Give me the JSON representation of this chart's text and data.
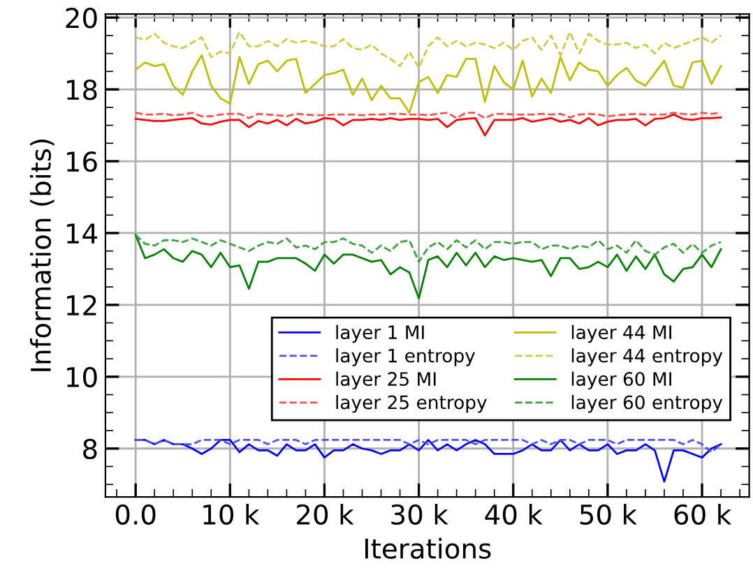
{
  "chart_data": {
    "type": "line",
    "xlabel": "Iterations",
    "ylabel": "Information (bits)",
    "x": [
      0,
      1000,
      2000,
      3000,
      4000,
      5000,
      6000,
      7000,
      8000,
      9000,
      10000,
      11000,
      12000,
      13000,
      14000,
      15000,
      16000,
      17000,
      18000,
      19000,
      20000,
      21000,
      22000,
      23000,
      24000,
      25000,
      26000,
      27000,
      28000,
      29000,
      30000,
      31000,
      32000,
      33000,
      34000,
      35000,
      36000,
      37000,
      38000,
      39000,
      40000,
      41000,
      42000,
      43000,
      44000,
      45000,
      46000,
      47000,
      48000,
      49000,
      50000,
      51000,
      52000,
      53000,
      54000,
      55000,
      56000,
      57000,
      58000,
      59000,
      60000,
      61000,
      62000
    ],
    "series": [
      {
        "name": "layer 1 MI",
        "color": "#0000ff",
        "line_style": "solid",
        "values": [
          8.24,
          8.24,
          8.12,
          8.24,
          8.12,
          8.12,
          8.0,
          7.85,
          8.0,
          8.24,
          8.24,
          7.9,
          8.12,
          7.95,
          7.95,
          7.8,
          8.12,
          7.95,
          7.95,
          8.12,
          7.75,
          7.95,
          7.95,
          8.12,
          8.0,
          7.95,
          7.85,
          7.95,
          7.95,
          8.12,
          7.95,
          8.24,
          7.95,
          8.12,
          7.95,
          8.12,
          8.24,
          8.12,
          7.85,
          7.85,
          7.85,
          7.95,
          8.12,
          7.95,
          7.95,
          8.24,
          7.95,
          8.12,
          7.95,
          7.95,
          8.12,
          7.85,
          7.95,
          7.95,
          8.12,
          7.95,
          7.08,
          7.95,
          7.95,
          7.85,
          7.75,
          8.0,
          8.12
        ]
      },
      {
        "name": "layer 1 entropy",
        "color": "#5050ff",
        "line_style": "dashed",
        "values": [
          8.24,
          8.24,
          8.12,
          8.24,
          8.12,
          8.12,
          8.12,
          8.24,
          8.24,
          8.24,
          8.12,
          8.24,
          8.24,
          8.24,
          8.12,
          8.24,
          8.24,
          8.24,
          8.12,
          8.24,
          8.24,
          8.24,
          8.24,
          8.24,
          8.24,
          8.24,
          8.24,
          8.24,
          8.24,
          8.12,
          8.24,
          8.12,
          8.24,
          8.24,
          8.24,
          8.24,
          8.12,
          8.24,
          8.24,
          8.24,
          8.24,
          8.24,
          8.12,
          8.24,
          8.12,
          8.24,
          8.24,
          8.12,
          8.24,
          8.24,
          8.24,
          8.12,
          8.24,
          8.24,
          8.24,
          8.24,
          8.24,
          8.24,
          8.12,
          8.24,
          8.12,
          7.9,
          8.12
        ]
      },
      {
        "name": "layer 25 MI",
        "color": "#ff0000",
        "line_style": "solid",
        "values": [
          17.18,
          17.15,
          17.12,
          17.12,
          17.15,
          17.18,
          17.2,
          17.05,
          17.02,
          17.1,
          17.15,
          17.15,
          16.95,
          17.12,
          17.05,
          17.15,
          17.0,
          17.18,
          17.05,
          17.1,
          17.2,
          17.18,
          17.0,
          17.15,
          17.15,
          17.18,
          17.15,
          17.2,
          17.15,
          17.18,
          17.18,
          17.15,
          17.18,
          16.95,
          17.15,
          17.18,
          17.2,
          16.72,
          17.15,
          17.15,
          17.15,
          17.2,
          17.1,
          17.15,
          17.2,
          17.1,
          17.15,
          17.05,
          17.2,
          17.0,
          17.1,
          17.15,
          17.15,
          17.18,
          17.0,
          17.18,
          17.2,
          17.3,
          17.18,
          17.15,
          17.2,
          17.2,
          17.22
        ]
      },
      {
        "name": "layer 25 entropy",
        "color": "#ff5050",
        "line_style": "dashed",
        "values": [
          17.35,
          17.3,
          17.3,
          17.32,
          17.28,
          17.3,
          17.35,
          17.25,
          17.25,
          17.3,
          17.32,
          17.32,
          17.2,
          17.32,
          17.3,
          17.28,
          17.25,
          17.32,
          17.3,
          17.28,
          17.28,
          17.3,
          17.3,
          17.3,
          17.28,
          17.3,
          17.3,
          17.32,
          17.32,
          17.3,
          17.3,
          17.28,
          17.32,
          17.35,
          17.2,
          17.35,
          17.35,
          17.2,
          17.32,
          17.32,
          17.3,
          17.3,
          17.3,
          17.32,
          17.3,
          17.32,
          17.22,
          17.3,
          17.32,
          17.3,
          17.25,
          17.28,
          17.3,
          17.32,
          17.3,
          17.3,
          17.3,
          17.35,
          17.32,
          17.3,
          17.35,
          17.32,
          17.35
        ]
      },
      {
        "name": "layer 44 MI",
        "color": "#bfbf00",
        "line_style": "solid",
        "values": [
          18.55,
          18.75,
          18.65,
          18.7,
          18.1,
          17.85,
          18.5,
          18.95,
          18.1,
          17.75,
          17.6,
          18.9,
          18.15,
          18.7,
          18.8,
          18.5,
          18.8,
          18.85,
          17.9,
          18.15,
          18.4,
          18.45,
          18.55,
          17.85,
          18.3,
          17.7,
          18.1,
          17.75,
          17.75,
          17.35,
          18.2,
          18.35,
          17.9,
          18.4,
          18.35,
          18.85,
          18.85,
          17.65,
          18.65,
          18.2,
          18.0,
          18.8,
          17.8,
          18.3,
          17.9,
          18.9,
          18.25,
          18.75,
          18.55,
          18.5,
          18.1,
          18.4,
          18.6,
          18.25,
          18.1,
          18.45,
          18.8,
          18.1,
          18.05,
          18.75,
          18.8,
          18.15,
          18.65
        ]
      },
      {
        "name": "layer 44 entropy",
        "color": "#cccc40",
        "line_style": "dashed",
        "values": [
          19.45,
          19.38,
          19.55,
          19.3,
          19.2,
          19.15,
          19.3,
          19.45,
          18.9,
          19.05,
          19.0,
          19.6,
          19.2,
          19.2,
          19.35,
          19.2,
          19.4,
          19.3,
          19.35,
          19.3,
          19.2,
          19.2,
          19.4,
          19.15,
          19.1,
          19.25,
          19.0,
          18.85,
          18.65,
          19.05,
          18.6,
          19.2,
          19.45,
          19.2,
          19.35,
          19.2,
          19.3,
          19.25,
          19.15,
          19.3,
          19.1,
          19.35,
          19.45,
          19.1,
          19.5,
          18.95,
          19.6,
          19.0,
          19.55,
          19.35,
          19.25,
          19.25,
          19.3,
          19.15,
          19.25,
          19.0,
          19.3,
          19.15,
          19.25,
          19.35,
          19.45,
          19.3,
          19.5
        ]
      },
      {
        "name": "layer 60 MI",
        "color": "#008000",
        "line_style": "solid",
        "values": [
          13.95,
          13.3,
          13.4,
          13.55,
          13.3,
          13.2,
          13.5,
          13.4,
          13.05,
          13.45,
          13.05,
          13.1,
          12.45,
          13.2,
          13.2,
          13.3,
          13.3,
          13.3,
          13.15,
          12.95,
          13.4,
          13.15,
          13.4,
          13.4,
          13.3,
          13.2,
          13.25,
          12.85,
          13.05,
          12.9,
          12.18,
          13.25,
          13.35,
          13.05,
          13.45,
          13.1,
          13.45,
          13.05,
          13.35,
          13.25,
          13.3,
          13.25,
          13.2,
          13.25,
          12.8,
          13.3,
          13.3,
          13.0,
          13.05,
          13.2,
          13.05,
          13.4,
          12.95,
          13.35,
          13.0,
          13.4,
          12.85,
          12.65,
          13.0,
          13.05,
          13.4,
          13.05,
          13.55
        ]
      },
      {
        "name": "layer 60 entropy",
        "color": "#40a040",
        "line_style": "dashed",
        "values": [
          13.95,
          13.7,
          13.65,
          13.8,
          13.8,
          13.75,
          13.85,
          13.75,
          13.65,
          13.8,
          13.7,
          13.6,
          13.5,
          13.65,
          13.75,
          13.7,
          13.85,
          13.6,
          13.65,
          13.55,
          13.75,
          13.75,
          13.85,
          13.7,
          13.65,
          13.45,
          13.65,
          13.5,
          13.75,
          13.8,
          13.2,
          13.6,
          13.75,
          13.55,
          13.8,
          13.6,
          13.8,
          13.55,
          13.75,
          13.75,
          13.7,
          13.75,
          13.75,
          13.55,
          13.65,
          13.65,
          13.55,
          13.65,
          13.6,
          13.8,
          13.55,
          13.65,
          13.45,
          13.8,
          13.5,
          13.4,
          13.6,
          13.7,
          13.45,
          13.7,
          13.45,
          13.65,
          13.75
        ]
      }
    ],
    "xlim": [
      -3200,
      65000
    ],
    "xticks": [
      {
        "value": 0,
        "label": "0.0"
      },
      {
        "value": 10000,
        "label": "10 k"
      },
      {
        "value": 20000,
        "label": "20 k"
      },
      {
        "value": 30000,
        "label": "30 k"
      },
      {
        "value": 40000,
        "label": "40 k"
      },
      {
        "value": 50000,
        "label": "50 k"
      },
      {
        "value": 60000,
        "label": "60 k"
      }
    ],
    "ylim": [
      6.65,
      20.1
    ],
    "yticks": [
      8,
      10,
      12,
      14,
      16,
      18,
      20
    ],
    "grid": true,
    "legend": "bottom right",
    "marker": "none"
  }
}
